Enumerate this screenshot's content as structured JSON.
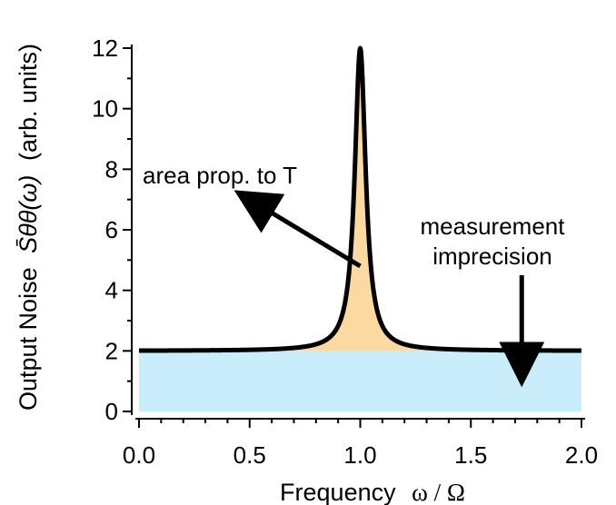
{
  "chart_data": {
    "type": "area",
    "xlabel": "Frequency",
    "xlabel_symbol": "ω / Ω",
    "ylabel": "Output Noise",
    "ylabel_symbol": "S̄θθ(ω)",
    "ylabel_units": "(arb. units)",
    "xlim": [
      0.0,
      2.0
    ],
    "ylim": [
      0,
      12
    ],
    "x_ticks": [
      0.0,
      0.5,
      1.0,
      1.5,
      2.0
    ],
    "x_tick_labels": [
      "0.0",
      "0.5",
      "1.0",
      "1.5",
      "2.0"
    ],
    "y_ticks": [
      0,
      2,
      4,
      6,
      8,
      10,
      12
    ],
    "y_tick_labels": [
      "0",
      "2",
      "4",
      "6",
      "8",
      "10",
      "12"
    ],
    "series": [
      {
        "kind": "lorentzian-peak-on-background",
        "background": 2.0,
        "peak_center": 1.0,
        "peak_value": 12.0,
        "half_width": 0.03,
        "x_start": 0.0,
        "x_end": 2.0,
        "line_color": "#000000",
        "peak_fill_color": "#FCD9A0",
        "background_fill_color": "#C9EDFA"
      }
    ],
    "annotations": [
      {
        "text": "area prop. to T",
        "arrow_from": [
          1.0,
          4.8
        ],
        "arrow_to": [
          0.5,
          7.0
        ]
      },
      {
        "text_lines": [
          "measurement",
          "imprecision"
        ],
        "arrow_from": [
          1.73,
          4.5
        ],
        "arrow_to": [
          1.73,
          1.4
        ]
      }
    ],
    "grid": false,
    "legend": "none"
  }
}
